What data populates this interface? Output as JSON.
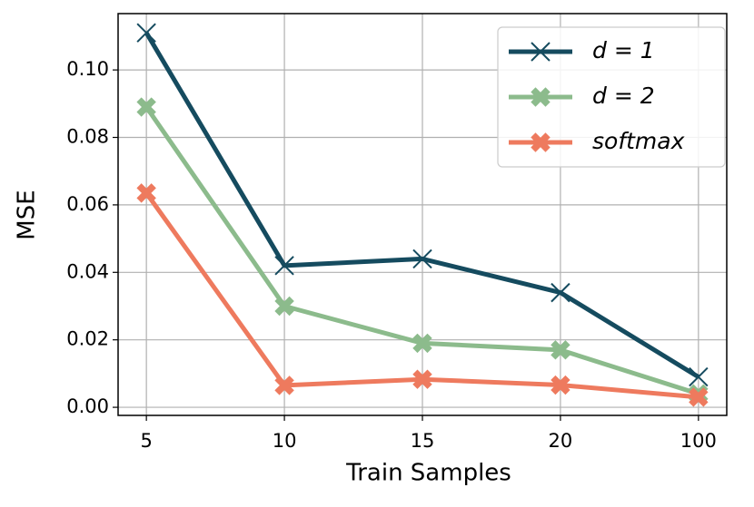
{
  "chart_data": {
    "type": "line",
    "x_label": "Train Samples",
    "y_label": "MSE",
    "categories": [
      "5",
      "10",
      "15",
      "20",
      "100"
    ],
    "series": [
      {
        "name": "d = 1",
        "color": "#154b5f",
        "marker": "x",
        "values": [
          0.111,
          0.042,
          0.044,
          0.034,
          0.009
        ]
      },
      {
        "name": "d = 2",
        "color": "#8cbb8c",
        "marker": "X",
        "values": [
          0.089,
          0.03,
          0.019,
          0.017,
          0.004
        ]
      },
      {
        "name": "softmax",
        "color": "#ee7a5e",
        "marker": "X",
        "values": [
          0.0635,
          0.0065,
          0.0083,
          0.0066,
          0.003
        ]
      }
    ],
    "ylim": [
      -0.0024,
      0.1167
    ],
    "yticks": [
      {
        "value": 0,
        "label": "0.00"
      },
      0.02,
      0.04,
      0.06,
      0.08,
      {
        "value": 0.1,
        "label": "0.10"
      }
    ],
    "grid": true,
    "legend": "upper right"
  }
}
